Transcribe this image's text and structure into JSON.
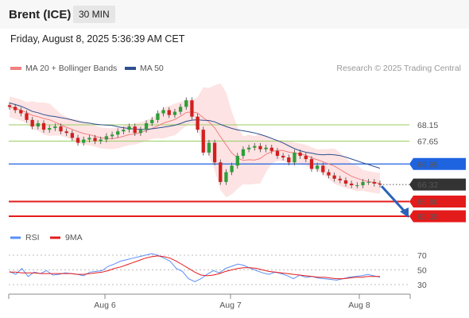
{
  "header": {
    "instrument": "Brent (ICE)",
    "timeframe": "30 MIN"
  },
  "datetime": "Friday, August 8, 2025 5:36:39 AM CET",
  "legend": {
    "ma20_label": "MA 20 + Bollinger Bands",
    "ma50_label": "MA 50",
    "ma20_color": "#f08080",
    "ma50_color": "#2f4f8f"
  },
  "copyright": "Research © 2025 Trading Central",
  "chart_data": [
    {
      "type": "candlestick",
      "title": "Brent (ICE)",
      "x_tick_labels": [
        "Aug 6",
        "Aug 7",
        "Aug 8"
      ],
      "price_levels": [
        {
          "label": "68.15",
          "value": 68.15,
          "kind": "resistance",
          "color": "#9acd63"
        },
        {
          "label": "67.65",
          "value": 67.65,
          "kind": "resistance",
          "color": "#9acd63"
        },
        {
          "label": "66.95",
          "value": 66.95,
          "kind": "pivot",
          "color": "#1e63e0"
        },
        {
          "label": "66.32",
          "value": 66.32,
          "kind": "last_price",
          "color": "#333333"
        },
        {
          "label": "65.80",
          "value": 65.8,
          "kind": "support",
          "color": "#e41b1b"
        },
        {
          "label": "65.35",
          "value": 65.35,
          "kind": "support",
          "color": "#e41b1b"
        }
      ],
      "series": [
        {
          "name": "MA 20 + Bollinger Bands",
          "color": "#f08080"
        },
        {
          "name": "MA 50",
          "color": "#2f4f8f"
        }
      ],
      "close": [
        68.7,
        68.6,
        68.5,
        68.3,
        68.1,
        68.2,
        68.0,
        68.05,
        68.1,
        67.95,
        67.9,
        67.75,
        67.6,
        67.7,
        67.75,
        67.65,
        67.7,
        67.8,
        67.85,
        67.95,
        68.0,
        68.1,
        67.9,
        68.0,
        68.2,
        68.3,
        68.5,
        68.6,
        68.45,
        68.55,
        68.7,
        68.9,
        68.4,
        68.0,
        67.3,
        67.6,
        67.0,
        66.4,
        66.7,
        66.9,
        67.2,
        67.4,
        67.45,
        67.5,
        67.4,
        67.45,
        67.35,
        67.2,
        67.15,
        67.0,
        67.3,
        67.2,
        67.1,
        66.8,
        66.9,
        66.7,
        66.6,
        66.5,
        66.45,
        66.35,
        66.3,
        66.3,
        66.4,
        66.4,
        66.35,
        66.32
      ],
      "projection": {
        "from": 66.32,
        "to": 65.35
      },
      "last_price": 66.32
    },
    {
      "type": "line",
      "title": "RSI",
      "series": [
        {
          "name": "RSI",
          "color": "#5b8ff9"
        },
        {
          "name": "9MA",
          "color": "#e41b1b"
        }
      ],
      "y_tick_labels": [
        "70",
        "50",
        "30"
      ],
      "ylim": [
        20,
        80
      ],
      "rsi": [
        48,
        44,
        52,
        41,
        47,
        45,
        49,
        43,
        44,
        46,
        45,
        44,
        42,
        47,
        48,
        49,
        55,
        58,
        62,
        64,
        66,
        68,
        70,
        72,
        70,
        66,
        62,
        52,
        48,
        38,
        34,
        38,
        44,
        49,
        46,
        52,
        55,
        58,
        56,
        52,
        49,
        46,
        44,
        47,
        45,
        42,
        38,
        43,
        40,
        41,
        39,
        38,
        37,
        36,
        38,
        40,
        41,
        42,
        44,
        42,
        40
      ],
      "ma9": [
        47,
        47,
        46,
        46,
        46,
        45,
        45,
        45,
        45,
        45,
        45,
        44,
        44,
        45,
        46,
        47,
        49,
        52,
        54,
        57,
        60,
        63,
        66,
        68,
        69,
        68,
        66,
        62,
        57,
        52,
        47,
        43,
        42,
        43,
        45,
        48,
        50,
        52,
        53,
        53,
        52,
        50,
        48,
        47,
        46,
        45,
        44,
        43,
        42,
        41,
        40,
        40,
        39,
        38,
        38,
        39,
        40,
        40,
        41,
        41,
        41
      ]
    }
  ]
}
